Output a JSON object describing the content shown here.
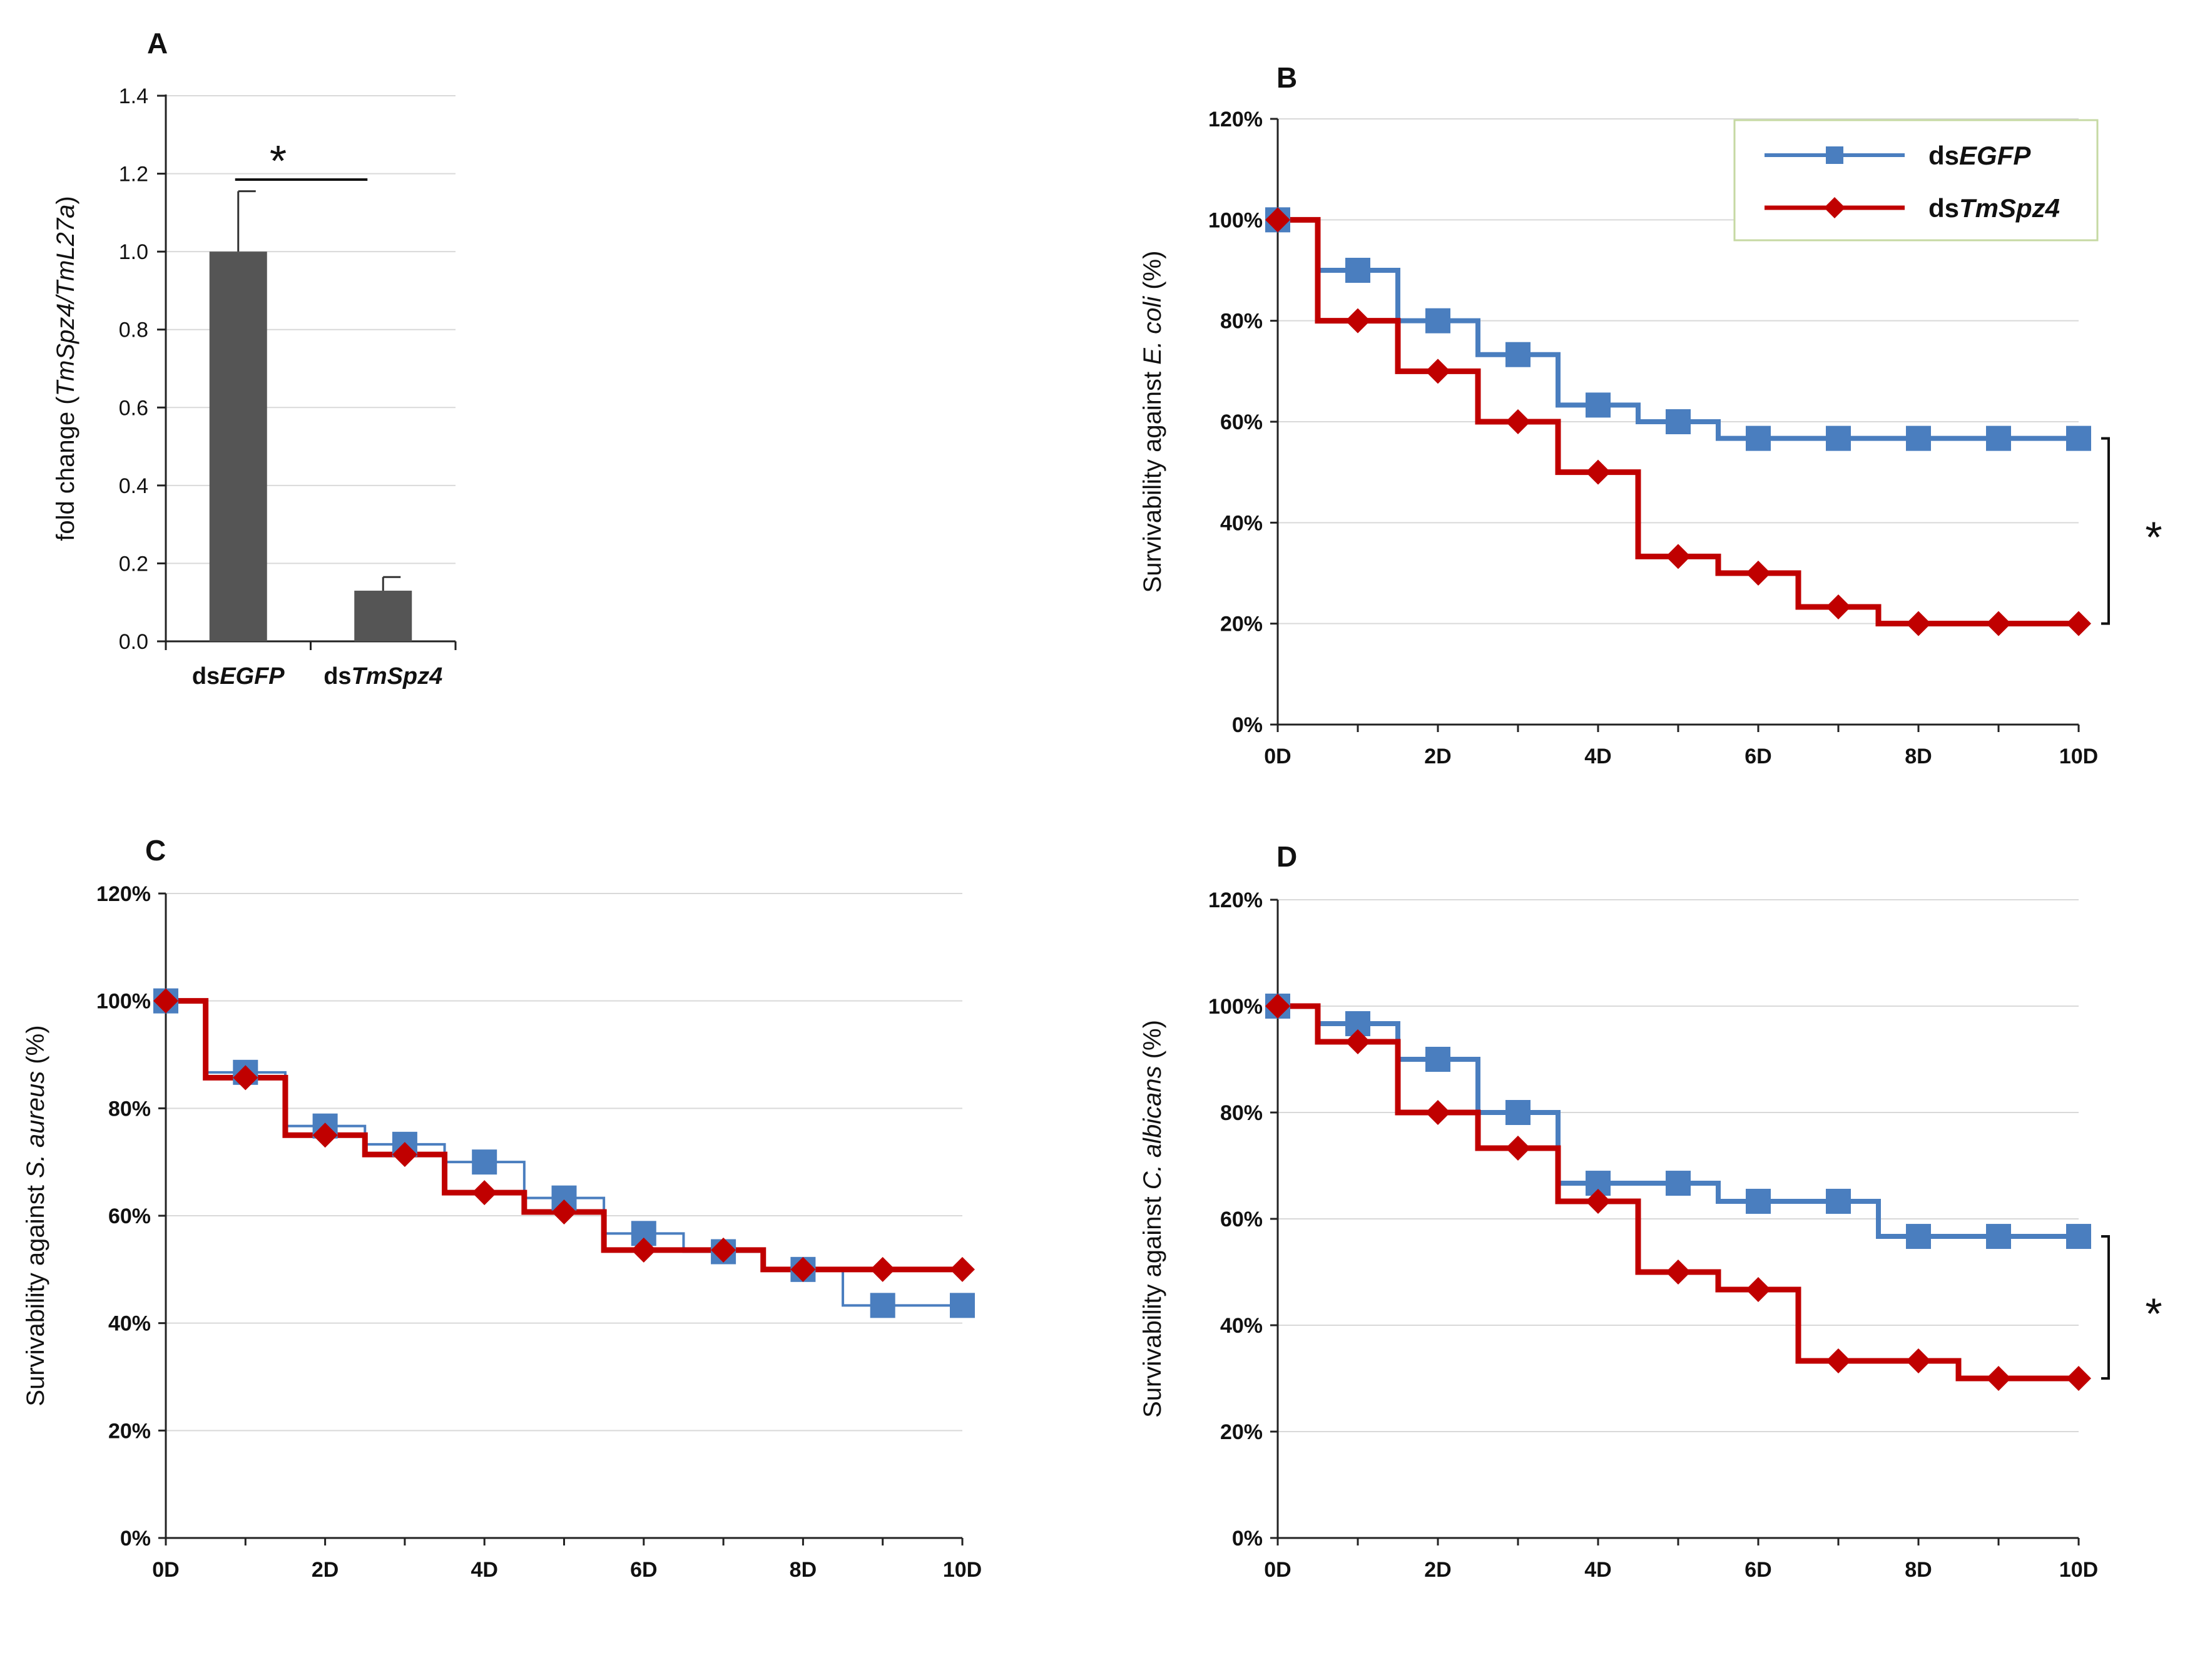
{
  "chart_data": [
    {
      "id": "A",
      "type": "bar",
      "panel_label": "A",
      "categories": [
        {
          "pre": "ds",
          "italic": "EGFP"
        },
        {
          "pre": "ds",
          "italic": "TmSpz4"
        }
      ],
      "values": [
        1.0,
        0.13
      ],
      "errors": [
        0.155,
        0.035
      ],
      "ylabel_pre": "fold change (",
      "ylabel_italic": "TmSpz4/TmL27a",
      "ylabel_post": ")",
      "ylim": [
        0,
        1.4
      ],
      "yticks": [
        "0.0",
        "0.2",
        "0.4",
        "0.6",
        "0.8",
        "1.0",
        "1.2",
        "1.4"
      ],
      "significance": "*",
      "bar_color": "#555555",
      "grid": true
    },
    {
      "id": "B",
      "type": "line",
      "panel_label": "B",
      "ylabel_pre": "Survivability against ",
      "ylabel_italic": "E. coli",
      "ylabel_post": " (%)",
      "ylim": [
        0,
        120
      ],
      "yticks": [
        "0%",
        "20%",
        "40%",
        "60%",
        "80%",
        "100%",
        "120%"
      ],
      "xticks": [
        "0D",
        "2D",
        "4D",
        "6D",
        "8D",
        "10D"
      ],
      "x": [
        0,
        1,
        2,
        3,
        4,
        5,
        6,
        7,
        8,
        9,
        10
      ],
      "series": [
        {
          "name_pre": "ds",
          "name_italic": "EGFP",
          "color": "#4a7ebf",
          "marker": "square",
          "values": [
            100,
            90,
            80,
            73.3,
            63.3,
            60,
            56.7,
            56.7,
            56.7,
            56.7,
            56.7
          ]
        },
        {
          "name_pre": "ds",
          "name_italic": "TmSpz4",
          "color": "#c00000",
          "marker": "diamond",
          "values": [
            100,
            80,
            70,
            60,
            50,
            33.3,
            30,
            23.3,
            20,
            20,
            20
          ]
        }
      ],
      "legend": "top-right",
      "significance": "*",
      "grid": true
    },
    {
      "id": "C",
      "type": "line",
      "panel_label": "C",
      "ylabel_pre": "Survivability against ",
      "ylabel_italic": "S. aureus",
      "ylabel_post": " (%)",
      "ylim": [
        0,
        120
      ],
      "yticks": [
        "0%",
        "20%",
        "40%",
        "60%",
        "80%",
        "100%",
        "120%"
      ],
      "xticks": [
        "0D",
        "2D",
        "4D",
        "6D",
        "8D",
        "10D"
      ],
      "x": [
        0,
        1,
        2,
        3,
        4,
        5,
        6,
        7,
        8,
        9,
        10
      ],
      "series": [
        {
          "name_pre": "ds",
          "name_italic": "EGFP",
          "color": "#4a7ebf",
          "marker": "square",
          "values": [
            100,
            86.7,
            76.7,
            73.3,
            70,
            63.3,
            56.7,
            53.3,
            50,
            43.3,
            43.3
          ]
        },
        {
          "name_pre": "ds",
          "name_italic": "TmSpz4",
          "color": "#c00000",
          "marker": "diamond",
          "values": [
            100,
            85.7,
            75,
            71.4,
            64.3,
            60.7,
            53.6,
            53.6,
            50,
            50,
            50
          ]
        }
      ],
      "grid": true
    },
    {
      "id": "D",
      "type": "line",
      "panel_label": "D",
      "ylabel_pre": "Survivability against ",
      "ylabel_italic": "C. albicans",
      "ylabel_post": " (%)",
      "ylim": [
        0,
        120
      ],
      "yticks": [
        "0%",
        "20%",
        "40%",
        "60%",
        "80%",
        "100%",
        "120%"
      ],
      "xticks": [
        "0D",
        "2D",
        "4D",
        "6D",
        "8D",
        "10D"
      ],
      "x": [
        0,
        1,
        2,
        3,
        4,
        5,
        6,
        7,
        8,
        9,
        10
      ],
      "series": [
        {
          "name_pre": "ds",
          "name_italic": "EGFP",
          "color": "#4a7ebf",
          "marker": "square",
          "values": [
            100,
            96.7,
            90,
            80,
            66.7,
            66.7,
            63.3,
            63.3,
            56.7,
            56.7,
            56.7
          ]
        },
        {
          "name_pre": "ds",
          "name_italic": "TmSpz4",
          "color": "#c00000",
          "marker": "diamond",
          "values": [
            100,
            93.3,
            80,
            73.3,
            63.3,
            50,
            46.7,
            33.3,
            33.3,
            30,
            30
          ]
        }
      ],
      "significance": "*",
      "grid": true
    }
  ]
}
